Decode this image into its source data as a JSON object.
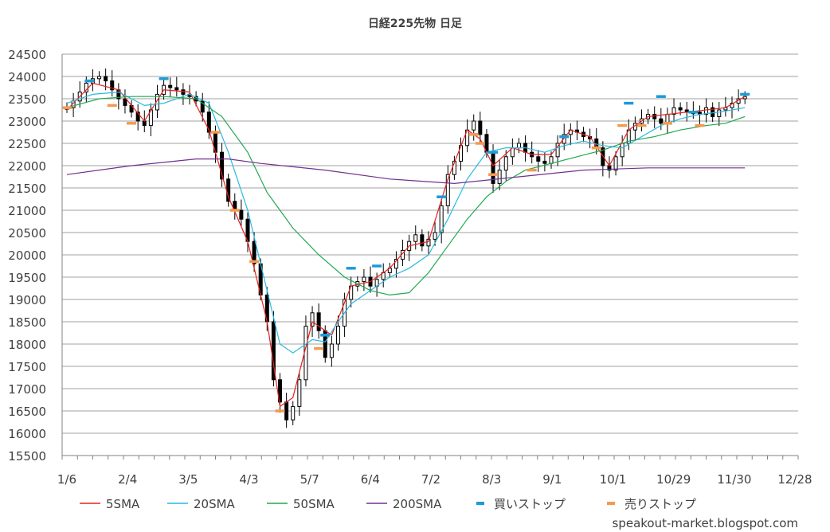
{
  "chart_data": {
    "type": "candlestick",
    "title": "日経225先物 日足",
    "ylim": [
      15500,
      24500
    ],
    "y_ticks": [
      15500,
      16000,
      16500,
      17000,
      17500,
      18000,
      18500,
      19000,
      19500,
      20000,
      20500,
      21000,
      21500,
      22000,
      22500,
      23000,
      23500,
      24000,
      24500
    ],
    "x_ticks": [
      "1/6",
      "2/4",
      "3/5",
      "4/3",
      "5/7",
      "6/4",
      "7/2",
      "8/3",
      "9/1",
      "10/1",
      "10/29",
      "11/30",
      "12/28"
    ],
    "grid": "horizontal",
    "legend_placement": "bottom",
    "candles_close_approx": [
      [
        0,
        23300
      ],
      [
        2,
        23450
      ],
      [
        4,
        23650
      ],
      [
        6,
        23850
      ],
      [
        8,
        23950
      ],
      [
        10,
        24000
      ],
      [
        12,
        23900
      ],
      [
        14,
        23700
      ],
      [
        16,
        23500
      ],
      [
        18,
        23350
      ],
      [
        20,
        23200
      ],
      [
        22,
        23000
      ],
      [
        24,
        22900
      ],
      [
        26,
        23250
      ],
      [
        28,
        23600
      ],
      [
        30,
        23800
      ],
      [
        32,
        23750
      ],
      [
        34,
        23700
      ],
      [
        36,
        23600
      ],
      [
        38,
        23550
      ],
      [
        40,
        23450
      ],
      [
        42,
        23200
      ],
      [
        44,
        22750
      ],
      [
        46,
        22300
      ],
      [
        48,
        21700
      ],
      [
        50,
        21200
      ],
      [
        52,
        21000
      ],
      [
        54,
        20800
      ],
      [
        56,
        20300
      ],
      [
        58,
        19800
      ],
      [
        60,
        19100
      ],
      [
        62,
        18500
      ],
      [
        64,
        17200
      ],
      [
        66,
        16700
      ],
      [
        68,
        16300
      ],
      [
        70,
        16600
      ],
      [
        72,
        17200
      ],
      [
        74,
        18400
      ],
      [
        76,
        18700
      ],
      [
        78,
        18300
      ],
      [
        80,
        17700
      ],
      [
        82,
        18000
      ],
      [
        84,
        18400
      ],
      [
        86,
        19000
      ],
      [
        88,
        19300
      ],
      [
        90,
        19400
      ],
      [
        92,
        19500
      ],
      [
        94,
        19300
      ],
      [
        96,
        19450
      ],
      [
        98,
        19600
      ],
      [
        100,
        19700
      ],
      [
        102,
        19900
      ],
      [
        104,
        20100
      ],
      [
        106,
        20300
      ],
      [
        108,
        20450
      ],
      [
        110,
        20200
      ],
      [
        112,
        20350
      ],
      [
        114,
        20500
      ],
      [
        116,
        21100
      ],
      [
        118,
        21800
      ],
      [
        120,
        22100
      ],
      [
        122,
        22450
      ],
      [
        124,
        22800
      ],
      [
        126,
        23000
      ],
      [
        128,
        22700
      ],
      [
        130,
        22300
      ],
      [
        132,
        21600
      ],
      [
        134,
        21900
      ],
      [
        136,
        22200
      ],
      [
        138,
        22400
      ],
      [
        140,
        22500
      ],
      [
        142,
        22300
      ],
      [
        144,
        22200
      ],
      [
        146,
        22100
      ],
      [
        148,
        22050
      ],
      [
        150,
        22200
      ],
      [
        152,
        22500
      ],
      [
        154,
        22700
      ],
      [
        156,
        22800
      ],
      [
        158,
        22750
      ],
      [
        160,
        22650
      ],
      [
        162,
        22600
      ],
      [
        164,
        22400
      ],
      [
        166,
        22000
      ],
      [
        168,
        21900
      ],
      [
        170,
        22200
      ],
      [
        172,
        22500
      ],
      [
        174,
        22800
      ],
      [
        176,
        22950
      ],
      [
        178,
        23050
      ],
      [
        180,
        23150
      ],
      [
        182,
        23050
      ],
      [
        184,
        22950
      ],
      [
        186,
        23150
      ],
      [
        188,
        23300
      ],
      [
        190,
        23250
      ],
      [
        192,
        23200
      ],
      [
        194,
        23200
      ],
      [
        196,
        23150
      ],
      [
        198,
        23300
      ],
      [
        200,
        23100
      ],
      [
        202,
        23250
      ],
      [
        204,
        23300
      ],
      [
        206,
        23400
      ],
      [
        208,
        23500
      ],
      [
        210,
        23550
      ]
    ],
    "series": [
      {
        "name": "5SMA",
        "color": "#e8221e",
        "x": [
          0,
          8,
          16,
          24,
          30,
          38,
          44,
          50,
          56,
          62,
          66,
          70,
          76,
          82,
          88,
          94,
          100,
          106,
          112,
          118,
          124,
          128,
          132,
          138,
          144,
          150,
          156,
          162,
          168,
          174,
          180,
          186,
          192,
          198,
          204,
          210
        ],
        "values": [
          23250,
          23850,
          23700,
          23000,
          23700,
          23650,
          22800,
          21300,
          20300,
          18500,
          16600,
          16800,
          18500,
          18200,
          19300,
          19400,
          19700,
          20200,
          20300,
          21700,
          22800,
          22600,
          22000,
          22400,
          22250,
          22250,
          22800,
          22650,
          22000,
          22800,
          23100,
          23150,
          23200,
          23250,
          23300,
          23550
        ]
      },
      {
        "name": "20SMA",
        "color": "#29b9e0",
        "x": [
          0,
          8,
          16,
          24,
          30,
          38,
          44,
          50,
          56,
          62,
          66,
          70,
          76,
          80,
          84,
          88,
          94,
          100,
          106,
          112,
          118,
          124,
          130,
          136,
          142,
          148,
          154,
          160,
          166,
          172,
          178,
          184,
          190,
          196,
          202,
          210
        ],
        "values": [
          23400,
          23600,
          23650,
          23350,
          23400,
          23600,
          23400,
          22300,
          21000,
          19200,
          18000,
          17800,
          18100,
          18050,
          18500,
          18900,
          19200,
          19500,
          19700,
          20000,
          20800,
          21700,
          22300,
          22400,
          22400,
          22300,
          22450,
          22550,
          22450,
          22400,
          22650,
          22900,
          23050,
          23150,
          23200,
          23300
        ]
      },
      {
        "name": "50SMA",
        "color": "#20a850",
        "x": [
          0,
          10,
          20,
          30,
          40,
          48,
          56,
          62,
          70,
          78,
          86,
          94,
          100,
          106,
          112,
          118,
          124,
          130,
          136,
          142,
          150,
          158,
          166,
          174,
          182,
          190,
          198,
          204,
          210
        ],
        "values": [
          23300,
          23500,
          23550,
          23550,
          23500,
          23100,
          22300,
          21400,
          20600,
          20000,
          19500,
          19200,
          19100,
          19150,
          19600,
          20200,
          20800,
          21300,
          21650,
          21900,
          22050,
          22200,
          22350,
          22550,
          22650,
          22800,
          22900,
          22950,
          23100
        ]
      },
      {
        "name": "200SMA",
        "color": "#703090",
        "x": [
          0,
          20,
          40,
          50,
          60,
          80,
          100,
          120,
          140,
          160,
          180,
          200,
          210
        ],
        "values": [
          21800,
          22000,
          22150,
          22150,
          22050,
          21900,
          21700,
          21600,
          21750,
          21900,
          21950,
          21950,
          21950
        ]
      },
      {
        "name": "買いストップ",
        "color": "#1d9ad8",
        "marker": "dash",
        "x": [
          7,
          30,
          80,
          88,
          96,
          116,
          132,
          154,
          174,
          184,
          194,
          210
        ],
        "values": [
          23900,
          23950,
          18200,
          19700,
          19750,
          21300,
          22300,
          22650,
          23400,
          23550,
          23200,
          23600
        ]
      },
      {
        "name": "売りストップ",
        "color": "#f39a4f",
        "marker": "dash",
        "x": [
          0,
          14,
          20,
          46,
          52,
          58,
          66,
          78,
          126,
          128,
          132,
          144,
          164,
          172,
          178,
          186,
          196
        ],
        "values": [
          23300,
          23350,
          22950,
          22750,
          21000,
          19850,
          16500,
          17900,
          22700,
          22500,
          21800,
          21900,
          22400,
          22900,
          22900,
          22950,
          22900
        ]
      }
    ]
  },
  "footer": "speakout-market.blogspot.com",
  "colors": {
    "grid": "#a0a0a0",
    "axis": "#808080",
    "candle": "#000000"
  }
}
